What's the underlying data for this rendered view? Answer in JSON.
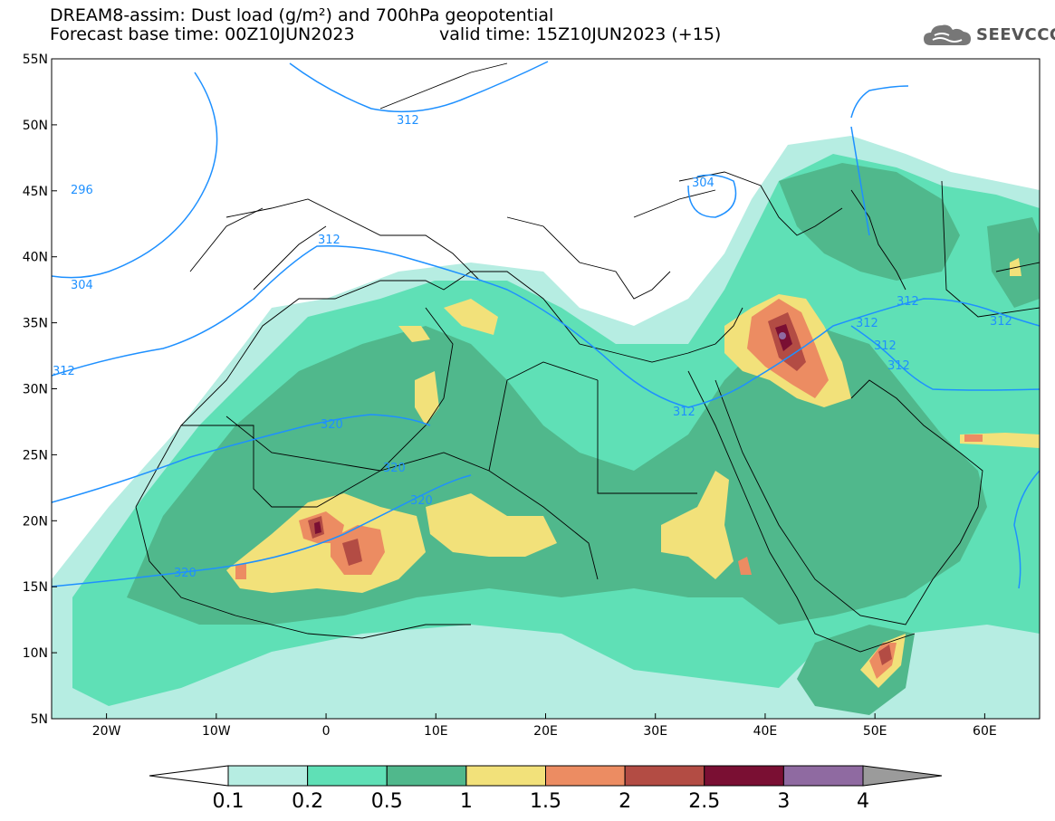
{
  "header": {
    "title_line1": "DREAM8-assim: Dust load (g/m²) and 700hPa geopotential",
    "title_line2_left": "Forecast base time: 00Z10JUN2023",
    "title_line2_right": "valid time: 15Z10JUN2023 (+15)"
  },
  "logo": {
    "text": "SEEVCCC",
    "icon": "cloud-icon"
  },
  "map": {
    "lat_range": [
      5,
      55
    ],
    "lon_range": [
      -25,
      65
    ],
    "lat_ticks": [
      "55N",
      "50N",
      "45N",
      "40N",
      "35N",
      "30N",
      "25N",
      "20N",
      "15N",
      "10N",
      "5N"
    ],
    "lon_ticks": [
      "20W",
      "10W",
      "0",
      "10E",
      "20E",
      "30E",
      "40E",
      "50E",
      "60E"
    ],
    "contour_labels": [
      "312",
      "296",
      "304",
      "312",
      "304",
      "312",
      "320",
      "320",
      "320",
      "320",
      "312",
      "312",
      "312",
      "312",
      "312",
      "312"
    ]
  },
  "legend": {
    "levels": [
      "0.1",
      "0.2",
      "0.5",
      "1",
      "1.5",
      "2",
      "2.5",
      "3",
      "4"
    ],
    "colors": [
      "#b6ede2",
      "#5fe0b6",
      "#50b88c",
      "#f2e17a",
      "#ec8c62",
      "#b34c44",
      "#7a0f33",
      "#8f6aa1"
    ],
    "low_arrow_color": "#ffffff",
    "high_arrow_color": "#9b9b9b"
  },
  "colors": {
    "dust_0_1": "#b6ede2",
    "dust_0_2": "#5fe0b6",
    "dust_0_5": "#50b88c",
    "dust_1": "#f2e17a",
    "dust_1_5": "#ec8c62",
    "dust_2": "#b34c44",
    "dust_2_5": "#7a0f33",
    "dust_3": "#8f6aa1",
    "geopotential": "#1e90ff"
  }
}
